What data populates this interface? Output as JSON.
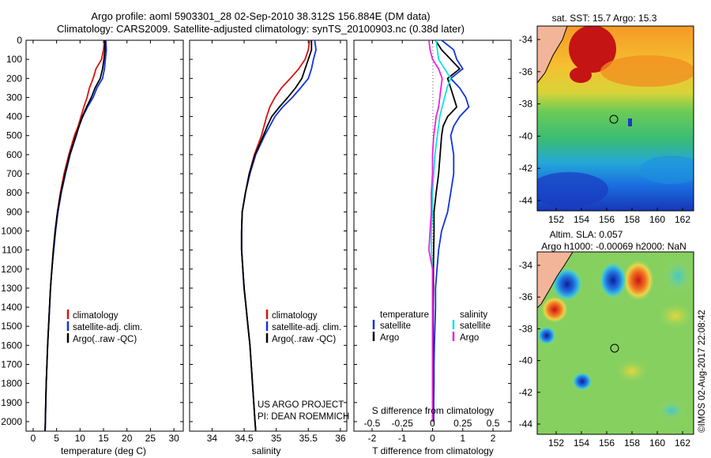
{
  "title": {
    "line1": "Argo profile: aoml 5903301_28 02-Sep-2010 38.312S 156.884E (DM data)",
    "line2": "Climatology: CARS2009. Satellite-adjusted climatology: synTS_20100903.nc (0.38d later)"
  },
  "credit": {
    "project": "US ARGO PROJECT",
    "pi": "PI: DEAN ROEMMICH",
    "stamp": "©IMOS 02-Aug-2017 22:08:42"
  },
  "colors": {
    "climatology": "#dd1111",
    "satellite": "#1133dd",
    "argo": "#000000",
    "sal_satellite": "#11e0e0",
    "sal_argo": "#ee22dd"
  },
  "depth_axis": {
    "ylim": [
      0,
      2050
    ],
    "ticks": [
      "0",
      "100",
      "200",
      "300",
      "400",
      "500",
      "600",
      "700",
      "800",
      "900",
      "1000",
      "1100",
      "1200",
      "1300",
      "1400",
      "1500",
      "1600",
      "1700",
      "1800",
      "1900",
      "2000"
    ]
  },
  "legend": {
    "climatology": "climatology",
    "satellite": "satellite-adj. clim.",
    "argo": "Argo(..raw -QC)"
  },
  "diff_legend": {
    "temperature_head": "temperature",
    "salinity_head": "salinity",
    "t_satellite": "satellite",
    "t_argo": "Argo",
    "s_satellite": "satellite",
    "s_argo": "Argo"
  },
  "maps": {
    "sst": {
      "title": "sat. SST: 15.7  Argo: 15.3",
      "yticks": [
        "-34",
        "-36",
        "-38",
        "-40",
        "-42",
        "-44"
      ],
      "xticks": [
        "152",
        "154",
        "156",
        "158",
        "160",
        "162"
      ]
    },
    "sla": {
      "title1": "Altim. SLA: 0.057",
      "title2": "Argo h1000: -0.00069  h2000: NaN",
      "yticks": [
        "-34",
        "-36",
        "-38",
        "-40",
        "-42",
        "-44"
      ],
      "xticks": [
        "152",
        "154",
        "156",
        "158",
        "160",
        "162"
      ]
    }
  },
  "chart_data": [
    {
      "type": "line",
      "name": "temperature_profile",
      "xlabel": "temperature (deg C)",
      "ylabel": "depth",
      "xlim": [
        -1.5,
        32
      ],
      "ylim": [
        0,
        2050
      ],
      "xticks": [
        "0",
        "5",
        "10",
        "15",
        "20",
        "25",
        "30"
      ],
      "depth": [
        0,
        50,
        100,
        150,
        200,
        250,
        300,
        350,
        400,
        450,
        500,
        600,
        700,
        800,
        900,
        1000,
        1100,
        1200,
        1300,
        1400,
        1500,
        1600,
        1700,
        1800,
        1900,
        2000,
        2050
      ],
      "series": [
        {
          "name": "climatology",
          "values": [
            15.2,
            15.0,
            14.6,
            13.4,
            12.8,
            12.0,
            11.5,
            10.8,
            10.2,
            9.6,
            8.8,
            7.6,
            6.6,
            5.8,
            5.2,
            4.7,
            4.3,
            4.0,
            3.7,
            3.5,
            3.3,
            3.1,
            2.95,
            2.8,
            2.7,
            2.6,
            2.55
          ]
        },
        {
          "name": "satellite",
          "values": [
            15.5,
            15.6,
            15.4,
            15.2,
            14.8,
            13.6,
            12.8,
            11.6,
            10.6,
            9.8,
            9.2,
            7.9,
            6.9,
            6.0,
            5.3,
            4.8,
            4.4,
            4.0,
            3.7,
            3.5,
            3.3,
            3.1,
            2.95,
            2.8,
            2.7,
            2.6,
            2.55
          ]
        },
        {
          "name": "argo",
          "values": [
            15.3,
            15.3,
            15.1,
            14.8,
            14.3,
            13.2,
            12.4,
            11.4,
            10.5,
            9.8,
            9.1,
            7.8,
            6.8,
            5.9,
            5.2,
            4.7,
            4.3,
            4.0,
            3.7,
            3.5,
            3.3,
            3.1,
            2.95,
            2.8,
            2.7,
            2.6,
            2.55
          ]
        }
      ]
    },
    {
      "type": "line",
      "name": "salinity_profile",
      "xlabel": "salinity",
      "ylabel": "depth",
      "xlim": [
        33.65,
        36.1
      ],
      "ylim": [
        0,
        2050
      ],
      "xticks": [
        "34",
        "34.5",
        "35",
        "35.5",
        "36"
      ],
      "depth": [
        0,
        50,
        100,
        150,
        200,
        250,
        300,
        350,
        400,
        450,
        500,
        600,
        700,
        800,
        900,
        1000,
        1100,
        1200,
        1300,
        1400,
        1500,
        1600,
        1700,
        1800,
        1900,
        2000,
        2050
      ],
      "series": [
        {
          "name": "climatology",
          "values": [
            35.52,
            35.5,
            35.45,
            35.35,
            35.22,
            35.08,
            34.98,
            34.9,
            34.85,
            34.81,
            34.77,
            34.66,
            34.58,
            34.52,
            34.47,
            34.46,
            34.46,
            34.48,
            34.5,
            34.53,
            34.56,
            34.59,
            34.61,
            34.63,
            34.65,
            34.67,
            34.68
          ]
        },
        {
          "name": "satellite",
          "values": [
            35.6,
            35.62,
            35.58,
            35.55,
            35.5,
            35.38,
            35.25,
            35.1,
            34.98,
            34.9,
            34.82,
            34.68,
            34.59,
            34.52,
            34.47,
            34.46,
            34.46,
            34.48,
            34.5,
            34.53,
            34.56,
            34.59,
            34.61,
            34.63,
            34.65,
            34.67,
            34.68
          ]
        },
        {
          "name": "argo",
          "values": [
            35.55,
            35.55,
            35.5,
            35.45,
            35.4,
            35.3,
            35.18,
            35.05,
            34.93,
            34.86,
            34.8,
            34.67,
            34.58,
            34.52,
            34.47,
            34.46,
            34.46,
            34.48,
            34.5,
            34.53,
            34.56,
            34.59,
            34.61,
            34.63,
            34.65,
            34.67,
            34.68
          ]
        }
      ]
    },
    {
      "type": "line",
      "name": "difference_from_climatology",
      "xlabel": "T difference from climatology",
      "x2label": "S difference from climatology",
      "ylabel": "depth",
      "xlim": [
        -2.6,
        2.6
      ],
      "ylim": [
        0,
        2050
      ],
      "xticks": [
        "-2",
        "-1",
        "0",
        "1",
        "2"
      ],
      "x2ticks": [
        "-0.5",
        "-0.25",
        "0",
        "0.25",
        "0.5"
      ],
      "depth": [
        0,
        50,
        100,
        150,
        200,
        250,
        300,
        350,
        400,
        450,
        500,
        600,
        700,
        800,
        900,
        1000,
        1100,
        1200,
        1300,
        1400,
        1500,
        1600,
        1700,
        1800,
        1900,
        2000
      ],
      "series": [
        {
          "name": "T satellite",
          "values": [
            0.3,
            0.7,
            0.8,
            1.0,
            0.6,
            0.9,
            1.1,
            1.2,
            0.9,
            0.7,
            0.6,
            0.7,
            0.7,
            0.6,
            0.5,
            0.3,
            0.2,
            0.15,
            0.1,
            0.1,
            0.08,
            0.06,
            0.05,
            0.05,
            0.04,
            0.04
          ]
        },
        {
          "name": "T argo",
          "values": [
            0.1,
            0.3,
            0.6,
            0.9,
            0.5,
            0.6,
            0.7,
            0.8,
            0.5,
            0.35,
            0.3,
            0.25,
            0.2,
            0.12,
            0.05,
            0.05,
            0.04,
            0.03,
            0.03,
            0.02,
            0.02,
            0.02,
            0.01,
            0.01,
            0.01,
            0.01
          ]
        },
        {
          "name": "S satellite",
          "values": [
            0.03,
            0.04,
            0.05,
            0.1,
            0.15,
            0.12,
            0.1,
            0.08,
            0.06,
            0.05,
            0.04,
            0.02,
            0.01,
            0.0,
            0.0,
            -0.01,
            -0.01,
            0.0,
            0.0,
            0.0,
            0.0,
            0.0,
            0.0,
            0.0,
            0.0,
            0.0
          ]
        },
        {
          "name": "S argo",
          "values": [
            -0.03,
            -0.02,
            0.0,
            0.05,
            0.08,
            0.07,
            0.06,
            0.05,
            0.03,
            0.02,
            0.01,
            0.0,
            0.0,
            -0.01,
            -0.01,
            -0.02,
            -0.03,
            0.0,
            0.0,
            0.0,
            0.0,
            0.0,
            0.0,
            0.0,
            0.0,
            0.0
          ]
        }
      ]
    }
  ]
}
